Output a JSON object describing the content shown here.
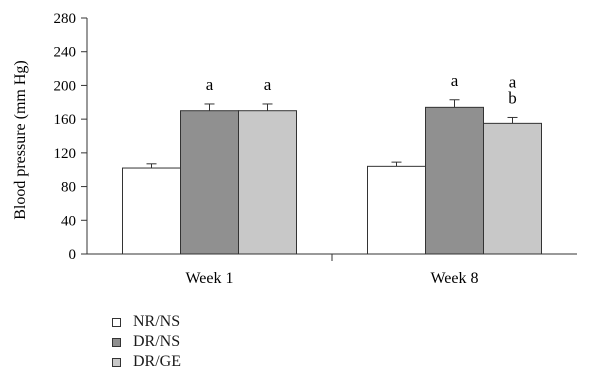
{
  "chart_data": {
    "type": "bar",
    "title": "",
    "xlabel": "",
    "ylabel": "Blood pressure (mm Hg)",
    "ylim": [
      0,
      280
    ],
    "yticks": [
      0,
      40,
      80,
      120,
      160,
      200,
      240,
      280
    ],
    "categories": [
      "Week 1",
      "Week 8"
    ],
    "series": [
      {
        "name": "NR/NS",
        "color": "#ffffff",
        "values": [
          102,
          104
        ],
        "errors": [
          5,
          5
        ],
        "annotations": [
          "",
          ""
        ]
      },
      {
        "name": "DR/NS",
        "color": "#909090",
        "values": [
          170,
          174
        ],
        "errors": [
          8,
          9
        ],
        "annotations": [
          "a",
          "a"
        ]
      },
      {
        "name": "DR/GE",
        "color": "#c8c8c8",
        "values": [
          170,
          155
        ],
        "errors": [
          8,
          7
        ],
        "annotations": [
          "a",
          "a\nb"
        ]
      }
    ],
    "grid": false,
    "legend_position": "bottom-left"
  }
}
